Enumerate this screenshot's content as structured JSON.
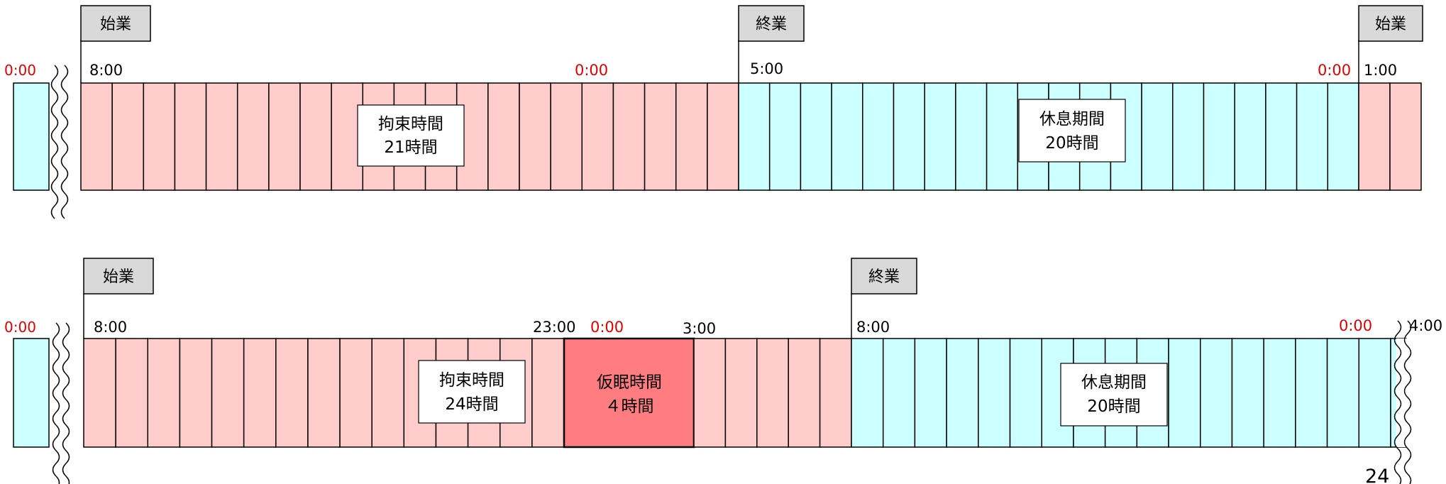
{
  "colors": {
    "work": "#ffcccc",
    "rest": "#ccffff",
    "nap": "#ff7c80",
    "flag": "#d9d9d9",
    "midnight_text": "#e00000",
    "line": "#000000"
  },
  "rows": [
    {
      "flags": [
        "始業",
        "終業",
        "始業"
      ],
      "times": {
        "left_zero": "0:00",
        "start": "8:00",
        "midnight_work": "0:00",
        "end": "5:00",
        "midnight_rest": "0:00",
        "next_start": "1:00"
      },
      "labels": [
        {
          "lines": [
            "拘束時間",
            "21時間"
          ]
        },
        {
          "lines": [
            "休息期間",
            "20時間"
          ]
        }
      ]
    },
    {
      "flags": [
        "始業",
        "終業"
      ],
      "times": {
        "left_zero": "0:00",
        "start": "8:00",
        "nap_start": "23:00",
        "midnight_nap": "0:00",
        "nap_end": "3:00",
        "end": "8:00",
        "midnight_rest": "0:00",
        "right_end": "4:00"
      },
      "labels": [
        {
          "lines": [
            "拘束時間",
            "24時間"
          ]
        },
        {
          "lines": [
            "仮眠時間",
            "４時間"
          ]
        },
        {
          "lines": [
            "休息期間",
            "20時間"
          ]
        }
      ]
    }
  ],
  "page_number": "24"
}
